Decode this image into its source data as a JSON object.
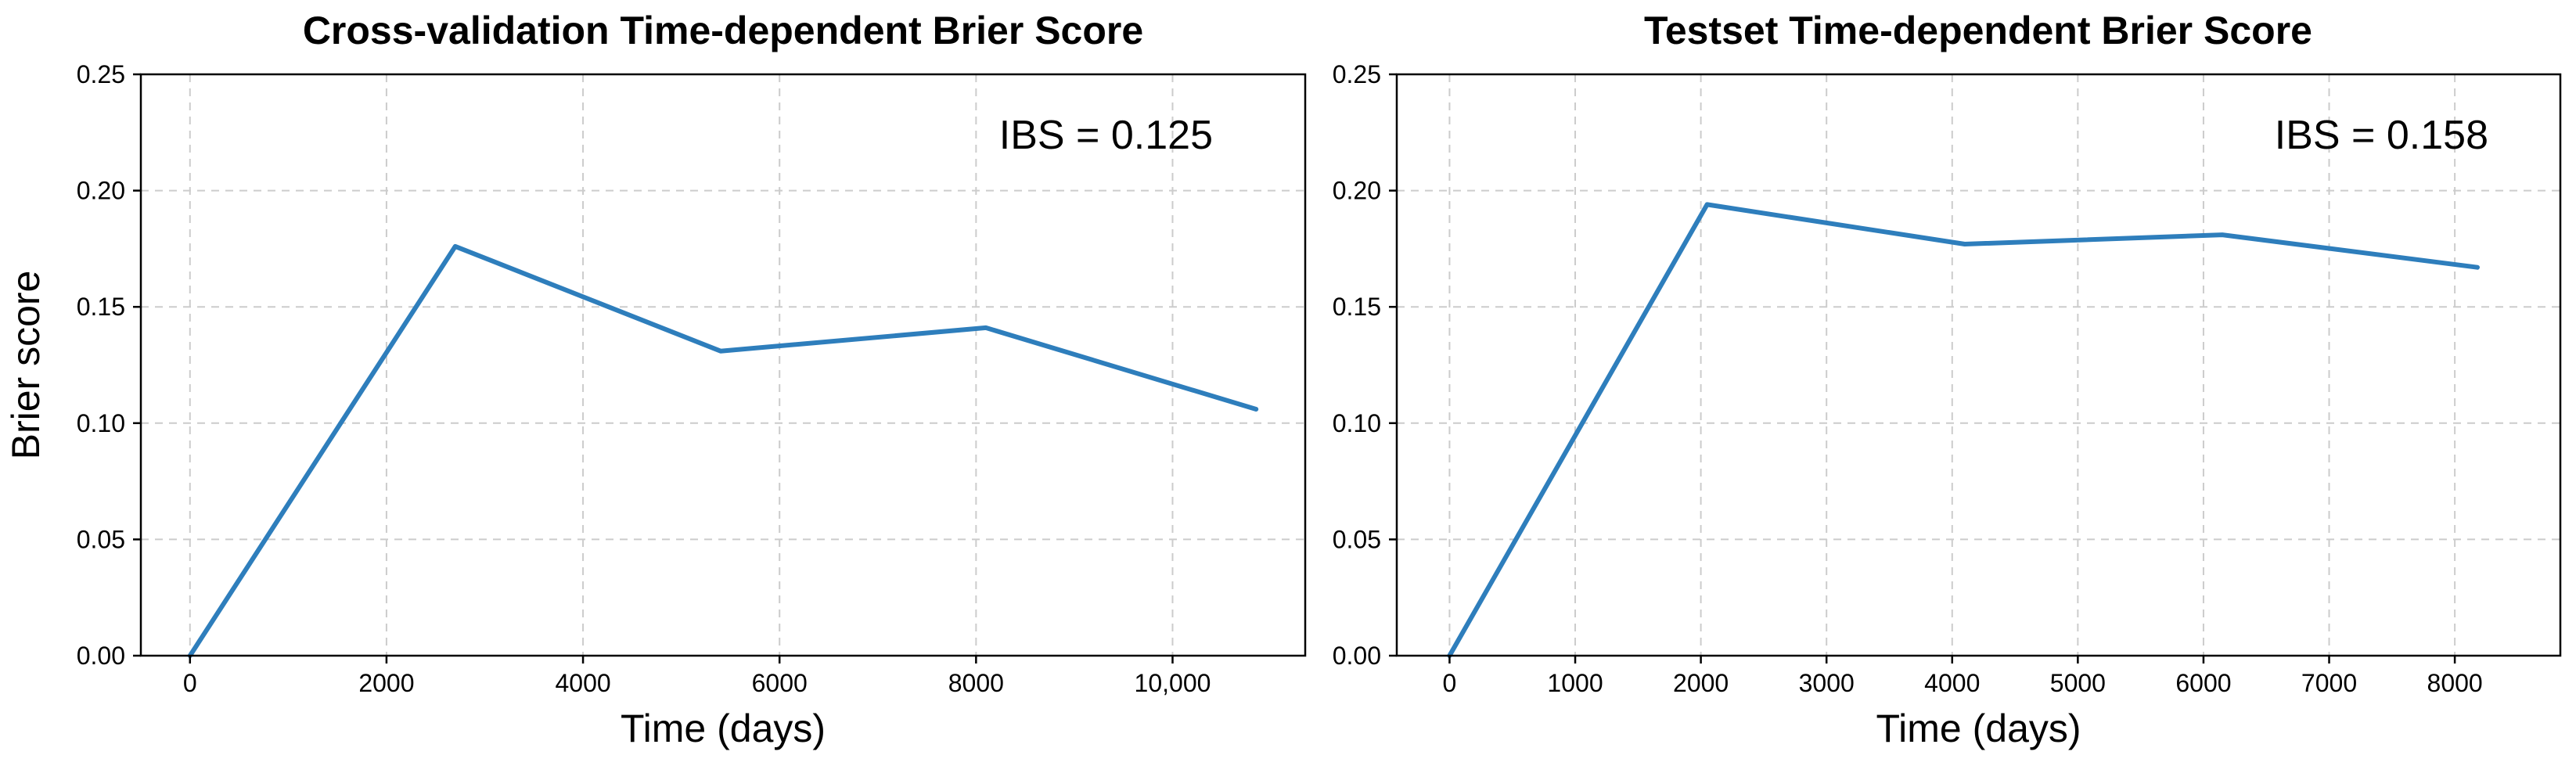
{
  "chart_data": [
    {
      "type": "line",
      "title": "Cross-validation Time-dependent Brier Score",
      "xlabel": "Time (days)",
      "ylabel": "Brier score",
      "xlim": [
        -500,
        11350
      ],
      "ylim": [
        0,
        0.25
      ],
      "xticks": [
        0,
        2000,
        4000,
        6000,
        8000,
        10000
      ],
      "xtick_labels": [
        "0",
        "2000",
        "4000",
        "6000",
        "8000",
        "10,000"
      ],
      "yticks": [
        0,
        0.05,
        0.1,
        0.15,
        0.2,
        0.25
      ],
      "ytick_labels": [
        "0.00",
        "0.05",
        "0.10",
        "0.15",
        "0.20",
        "0.25"
      ],
      "grid": true,
      "annotation": "IBS = 0.125",
      "color": "#2e7ebc",
      "series": [
        {
          "x": [
            0,
            2700,
            5400,
            8100,
            10850
          ],
          "y": [
            0.0,
            0.176,
            0.131,
            0.141,
            0.106
          ]
        }
      ]
    },
    {
      "type": "line",
      "title": "Testset Time-dependent Brier Score",
      "xlabel": "Time (days)",
      "ylabel": "",
      "xlim": [
        -420,
        8840
      ],
      "ylim": [
        0,
        0.25
      ],
      "xticks": [
        0,
        1000,
        2000,
        3000,
        4000,
        5000,
        6000,
        7000,
        8000
      ],
      "xtick_labels": [
        "0",
        "1000",
        "2000",
        "3000",
        "4000",
        "5000",
        "6000",
        "7000",
        "8000"
      ],
      "yticks": [
        0,
        0.05,
        0.1,
        0.15,
        0.2,
        0.25
      ],
      "ytick_labels": [
        "0.00",
        "0.05",
        "0.10",
        "0.15",
        "0.20",
        "0.25"
      ],
      "grid": true,
      "annotation": "IBS = 0.158",
      "color": "#2e7ebc",
      "series": [
        {
          "x": [
            0,
            2050,
            4100,
            6150,
            8180
          ],
          "y": [
            0.0,
            0.194,
            0.177,
            0.181,
            0.167
          ]
        }
      ]
    }
  ]
}
